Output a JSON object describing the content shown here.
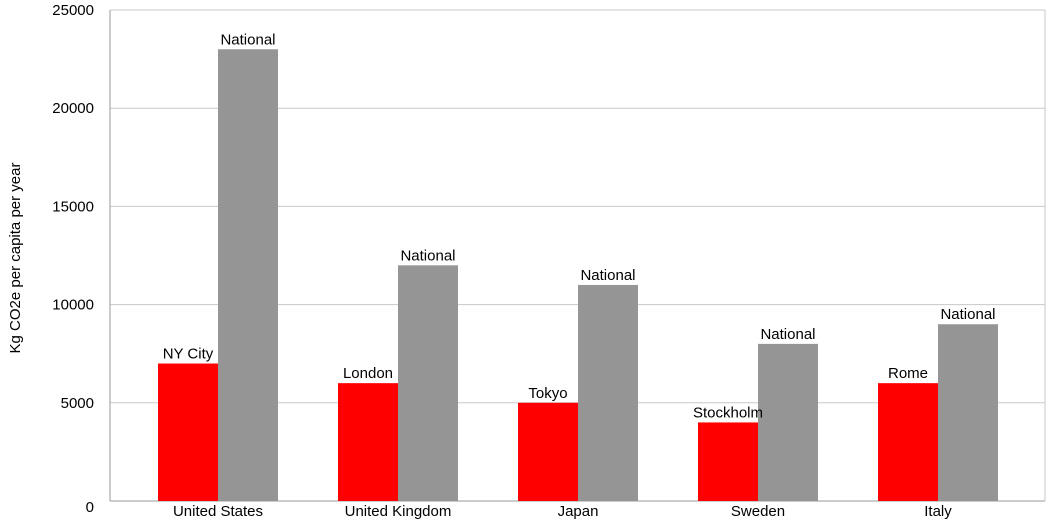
{
  "chart_data": {
    "type": "bar",
    "title": "",
    "xlabel": "",
    "ylabel": "Kg CO2e per capita per year",
    "ylim": [
      0,
      25000
    ],
    "yticks": [
      0,
      5000,
      10000,
      15000,
      20000,
      25000
    ],
    "grid": true,
    "categories": [
      "United States",
      "United Kingdom",
      "Japan",
      "Sweden",
      "Italy"
    ],
    "series": [
      {
        "color": "#ff0000",
        "values": [
          7000,
          6000,
          5000,
          4000,
          6000
        ],
        "labels": [
          "NY City",
          "London",
          "Tokyo",
          "Stockholm",
          "Rome"
        ]
      },
      {
        "color": "#959595",
        "values": [
          23000,
          12000,
          11000,
          8000,
          9000
        ],
        "labels": [
          "National",
          "National",
          "National",
          "National",
          "National"
        ]
      }
    ]
  },
  "colors": {
    "grid": "#c8c8c8",
    "axis": "#9a9a9a",
    "frame": "#c8c8c8"
  }
}
